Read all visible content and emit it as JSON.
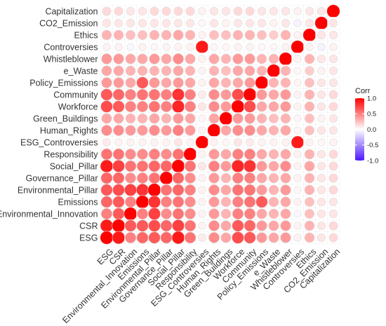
{
  "chart_data": {
    "type": "heatmap",
    "title": "",
    "xlabel": "",
    "ylabel": "",
    "variables": [
      "ESG",
      "CSR",
      "Environmental_Innovation",
      "Emissions",
      "Environmental_Pillar",
      "Governance_Pillar",
      "Social_Pillar",
      "Responsibility",
      "ESG_Controversies",
      "Human_Rights",
      "Green_Buildings",
      "Workforce",
      "Community",
      "Policy_Emissions",
      "e_Waste",
      "Whistleblower",
      "Controversies",
      "Ethics",
      "CO2_Emission",
      "Capitalization"
    ],
    "correlations": [
      [
        1.0,
        0.9,
        0.5,
        0.6,
        0.65,
        0.6,
        0.9,
        0.55,
        0.08,
        0.45,
        0.35,
        0.7,
        0.65,
        0.4,
        0.35,
        0.4,
        0.05,
        0.3,
        0.1,
        0.15
      ],
      [
        0.9,
        1.0,
        0.65,
        0.65,
        0.7,
        0.6,
        0.75,
        0.55,
        0.05,
        0.45,
        0.35,
        0.65,
        0.6,
        0.4,
        0.35,
        0.4,
        0.05,
        0.3,
        0.1,
        0.15
      ],
      [
        0.5,
        0.65,
        1.0,
        0.5,
        0.75,
        0.45,
        0.55,
        0.45,
        0.05,
        0.4,
        0.3,
        0.5,
        0.5,
        0.35,
        0.3,
        0.35,
        -0.03,
        0.25,
        0.1,
        0.1
      ],
      [
        0.6,
        0.65,
        0.5,
        1.0,
        0.8,
        0.5,
        0.55,
        0.45,
        0.05,
        0.4,
        0.3,
        0.5,
        0.55,
        0.65,
        0.3,
        0.35,
        0.05,
        0.25,
        0.1,
        0.1
      ],
      [
        0.65,
        0.7,
        0.75,
        0.8,
        1.0,
        0.55,
        0.6,
        0.5,
        0.05,
        0.45,
        0.35,
        0.55,
        0.55,
        0.4,
        0.3,
        0.4,
        0.03,
        0.3,
        0.1,
        0.15
      ],
      [
        0.6,
        0.6,
        0.45,
        0.5,
        0.55,
        1.0,
        0.6,
        0.45,
        0.05,
        0.4,
        0.3,
        0.5,
        0.5,
        0.35,
        0.3,
        0.35,
        0.05,
        0.3,
        0.1,
        0.15
      ],
      [
        0.9,
        0.75,
        0.55,
        0.55,
        0.6,
        0.6,
        1.0,
        0.55,
        0.1,
        0.5,
        0.4,
        0.85,
        0.8,
        0.4,
        0.35,
        0.45,
        0.05,
        0.35,
        0.1,
        0.15
      ],
      [
        0.55,
        0.55,
        0.45,
        0.45,
        0.5,
        0.45,
        0.55,
        1.0,
        0.05,
        0.4,
        0.35,
        0.5,
        0.5,
        0.35,
        0.3,
        0.35,
        0.05,
        0.3,
        0.1,
        0.15
      ],
      [
        0.08,
        0.05,
        0.05,
        0.05,
        0.05,
        0.05,
        0.1,
        0.05,
        1.0,
        0.05,
        0.03,
        0.1,
        0.08,
        0.05,
        0.05,
        0.05,
        0.9,
        0.05,
        0.03,
        0.05
      ],
      [
        0.45,
        0.45,
        0.4,
        0.4,
        0.45,
        0.4,
        0.5,
        0.4,
        0.05,
        1.0,
        0.35,
        0.45,
        0.45,
        0.35,
        0.3,
        0.35,
        0.03,
        0.25,
        0.1,
        0.1
      ],
      [
        0.35,
        0.35,
        0.3,
        0.3,
        0.35,
        0.3,
        0.4,
        0.35,
        0.03,
        0.35,
        1.0,
        0.4,
        0.4,
        0.3,
        0.25,
        0.3,
        0.03,
        0.25,
        0.05,
        0.1
      ],
      [
        0.7,
        0.65,
        0.5,
        0.5,
        0.55,
        0.5,
        0.85,
        0.5,
        0.1,
        0.45,
        0.4,
        1.0,
        0.7,
        0.35,
        0.35,
        0.4,
        0.05,
        0.3,
        0.1,
        0.15
      ],
      [
        0.65,
        0.6,
        0.5,
        0.55,
        0.55,
        0.5,
        0.8,
        0.5,
        0.08,
        0.45,
        0.4,
        0.7,
        1.0,
        0.4,
        0.35,
        0.4,
        0.05,
        0.3,
        0.1,
        0.15
      ],
      [
        0.4,
        0.4,
        0.35,
        0.65,
        0.4,
        0.35,
        0.4,
        0.35,
        0.05,
        0.35,
        0.3,
        0.35,
        0.4,
        1.0,
        0.3,
        0.3,
        0.03,
        0.25,
        0.1,
        0.1
      ],
      [
        0.35,
        0.35,
        0.3,
        0.3,
        0.3,
        0.3,
        0.35,
        0.3,
        0.05,
        0.3,
        0.25,
        0.35,
        0.35,
        0.3,
        1.0,
        0.3,
        0.03,
        0.2,
        0.05,
        0.1
      ],
      [
        0.4,
        0.4,
        0.35,
        0.35,
        0.4,
        0.35,
        0.45,
        0.35,
        0.05,
        0.35,
        0.3,
        0.4,
        0.4,
        0.3,
        0.3,
        1.0,
        0.05,
        0.3,
        0.1,
        0.1
      ],
      [
        0.05,
        0.05,
        -0.03,
        0.05,
        0.03,
        0.05,
        0.05,
        0.05,
        0.9,
        0.03,
        0.03,
        0.05,
        0.05,
        0.03,
        0.03,
        0.05,
        1.0,
        0.05,
        -0.05,
        0.05
      ],
      [
        0.3,
        0.3,
        0.25,
        0.25,
        0.3,
        0.3,
        0.35,
        0.3,
        0.05,
        0.25,
        0.25,
        0.3,
        0.3,
        0.25,
        0.2,
        0.3,
        0.05,
        1.0,
        0.1,
        0.1
      ],
      [
        0.1,
        0.1,
        0.1,
        0.1,
        0.1,
        0.1,
        0.1,
        0.1,
        0.03,
        0.1,
        0.05,
        0.1,
        0.1,
        0.1,
        0.05,
        0.1,
        -0.05,
        0.1,
        1.0,
        0.1
      ],
      [
        0.15,
        0.15,
        0.1,
        0.1,
        0.15,
        0.15,
        0.15,
        0.15,
        0.05,
        0.1,
        0.1,
        0.15,
        0.15,
        0.1,
        0.1,
        0.1,
        0.05,
        0.1,
        0.1,
        1.0
      ]
    ],
    "legend": {
      "title": "Corr",
      "ticks": [
        "1.0",
        "0.5",
        "0.0",
        "-0.5",
        "-1.0"
      ],
      "tick_values": [
        1.0,
        0.5,
        0.0,
        -0.5,
        -1.0
      ],
      "placement": "right",
      "colors": {
        "high": "#ff0000",
        "mid": "#ffffff",
        "low": "#4b17ff"
      }
    },
    "ylim": [
      -1,
      1
    ],
    "grid": false
  }
}
